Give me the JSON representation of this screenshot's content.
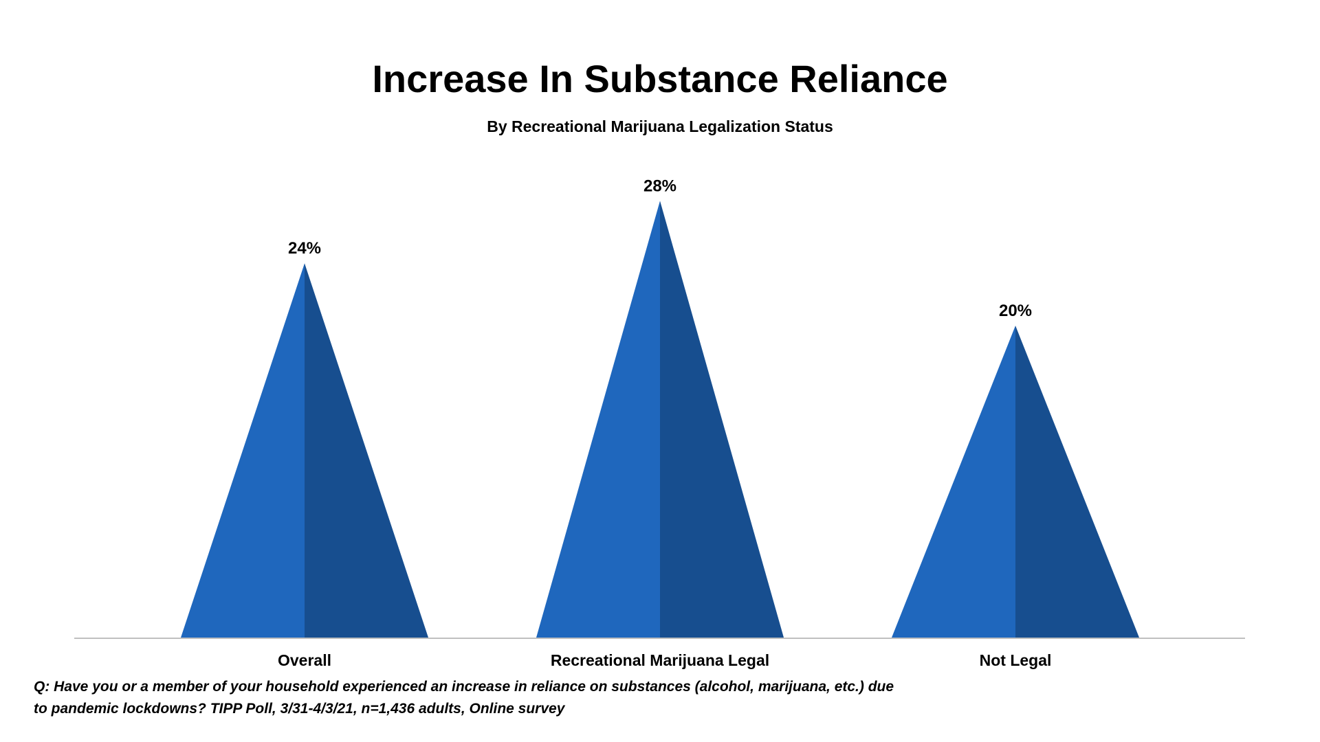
{
  "chart_data": {
    "type": "bar",
    "mark": "triangle",
    "title": "Increase In Substance Reliance",
    "subtitle": "By Recreational Marijuana Legalization Status",
    "categories": [
      "Overall",
      "Recreational Marijuana Legal",
      "Not Legal"
    ],
    "values": [
      24,
      28,
      20
    ],
    "data_labels": [
      "24%",
      "28%",
      "20%"
    ],
    "xlabel": "",
    "ylabel": "",
    "ylim": [
      0,
      30
    ],
    "grid": false,
    "colors": {
      "light": "#1f67bd",
      "dark": "#174e8f",
      "axis": "#bfbfbf"
    }
  },
  "footnote": {
    "line1": "Q:  Have you or a member of your household experienced an increase in reliance on substances (alcohol, marijuana, etc.) due",
    "line2": "to pandemic lockdowns? TIPP Poll, 3/31-4/3/21, n=1,436 adults, Online survey"
  }
}
